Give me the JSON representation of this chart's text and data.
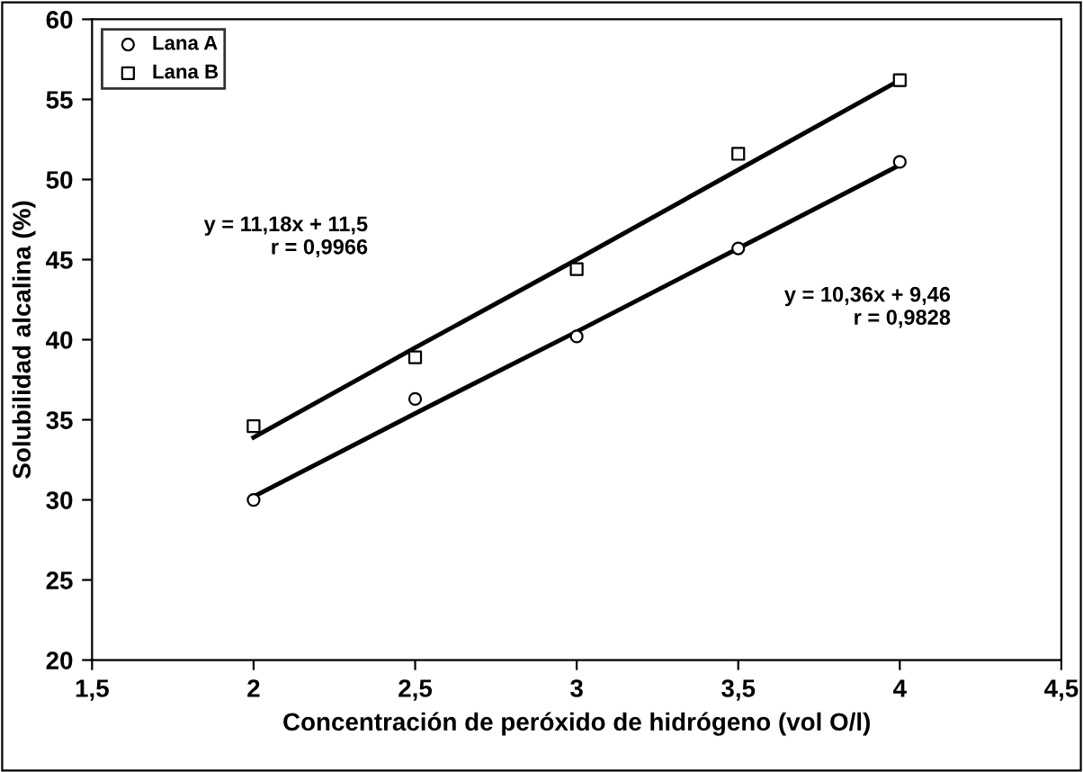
{
  "chart_data": {
    "type": "scatter",
    "xlabel": "Concentración de peróxido de hidrógeno (vol O/l)",
    "ylabel": "Solubilidad alcalina (%)",
    "xlim": [
      1.5,
      4.5
    ],
    "ylim": [
      20,
      60
    ],
    "xticks": [
      {
        "value": 1.5,
        "label": "1,5"
      },
      2,
      {
        "value": 2.5,
        "label": "2,5"
      },
      3,
      {
        "value": 3.5,
        "label": "3,5"
      },
      4,
      {
        "value": 4.5,
        "label": "4,5"
      }
    ],
    "yticks": [
      20,
      25,
      30,
      35,
      40,
      45,
      50,
      55,
      60
    ],
    "x": [
      2,
      2.5,
      3,
      3.5,
      4
    ],
    "series": [
      {
        "name": "Lana A",
        "marker": "circle",
        "color": "#000000",
        "values": [
          30.0,
          36.3,
          40.2,
          45.7,
          51.1
        ]
      },
      {
        "name": "Lana B",
        "marker": "square",
        "color": "#000000",
        "values": [
          34.6,
          38.9,
          44.4,
          51.6,
          56.2
        ]
      },
      {
        "type": "line",
        "color": "#000000",
        "values": [
          30.2,
          35.4,
          40.5,
          45.7,
          50.9
        ]
      },
      {
        "type": "line",
        "color": "#000000",
        "values": [
          33.9,
          39.5,
          45.0,
          50.6,
          56.2
        ]
      }
    ],
    "annotations": [
      "y = 11,18x + 11,5\nr = 0,9966",
      "y = 10,36x + 9,46\nr = 0,9828"
    ],
    "legend": "top left",
    "grid": false
  }
}
